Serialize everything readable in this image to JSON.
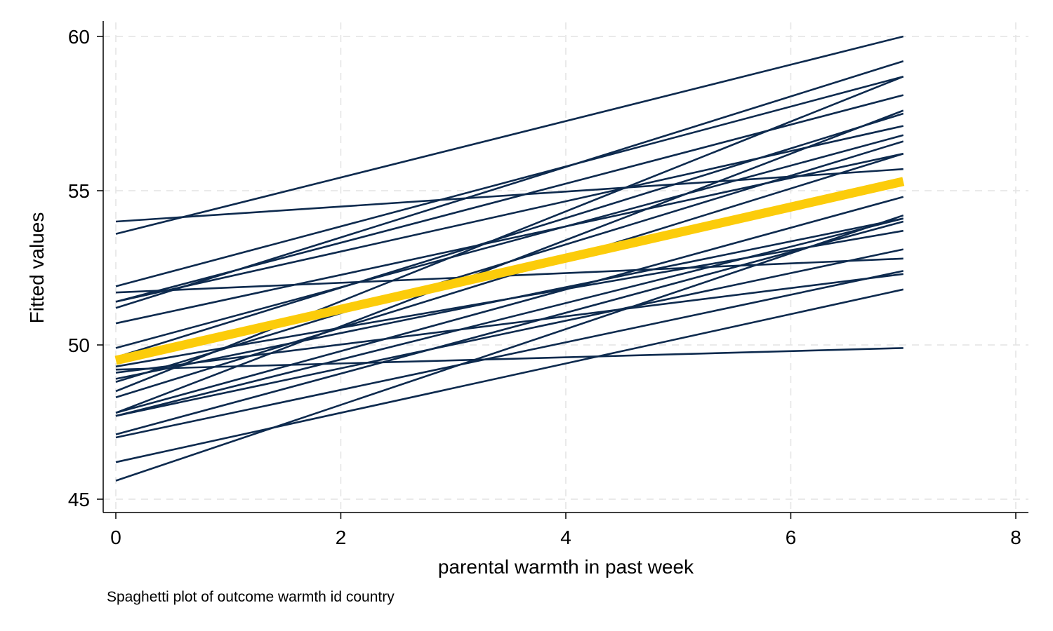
{
  "chart_data": {
    "type": "line",
    "xlabel": "parental warmth in past week",
    "ylabel": "Fitted values",
    "note": "Spaghetti plot of outcome warmth id country",
    "xlim": [
      0,
      8
    ],
    "ylim": [
      45,
      60
    ],
    "xticks": [
      0,
      2,
      4,
      6,
      8
    ],
    "yticks": [
      45,
      50,
      55,
      60
    ],
    "grid": true,
    "legend": "none",
    "colors": {
      "series": "#0d2a4e",
      "mean": "#fccc0a",
      "grid": "#e4e4e4",
      "axis": "#000000"
    },
    "x": [
      0,
      7
    ],
    "series": [
      {
        "values": [
          54.0,
          55.7
        ]
      },
      {
        "values": [
          53.6,
          60.0
        ]
      },
      {
        "values": [
          51.9,
          58.7
        ]
      },
      {
        "values": [
          51.7,
          52.8
        ]
      },
      {
        "values": [
          51.4,
          58.1
        ]
      },
      {
        "values": [
          51.4,
          57.1
        ]
      },
      {
        "values": [
          51.2,
          59.2
        ]
      },
      {
        "values": [
          50.7,
          56.2
        ]
      },
      {
        "values": [
          49.9,
          56.8
        ]
      },
      {
        "values": [
          49.6,
          57.5
        ]
      },
      {
        "values": [
          49.3,
          53.7
        ]
      },
      {
        "values": [
          49.2,
          49.9
        ]
      },
      {
        "values": [
          49.1,
          52.3
        ]
      },
      {
        "values": [
          48.9,
          54.1
        ]
      },
      {
        "values": [
          48.8,
          56.6
        ]
      },
      {
        "values": [
          48.5,
          58.7
        ]
      },
      {
        "values": [
          48.3,
          56.2
        ]
      },
      {
        "values": [
          47.8,
          54.8
        ]
      },
      {
        "values": [
          47.8,
          57.6
        ]
      },
      {
        "values": [
          47.7,
          54.1
        ]
      },
      {
        "values": [
          47.7,
          53.1
        ]
      },
      {
        "values": [
          47.1,
          54.0
        ]
      },
      {
        "values": [
          47.0,
          52.4
        ]
      },
      {
        "values": [
          46.2,
          51.8
        ]
      },
      {
        "values": [
          45.6,
          54.2
        ]
      },
      {
        "values": [
          49.5,
          55.3
        ],
        "mean": true
      }
    ]
  }
}
